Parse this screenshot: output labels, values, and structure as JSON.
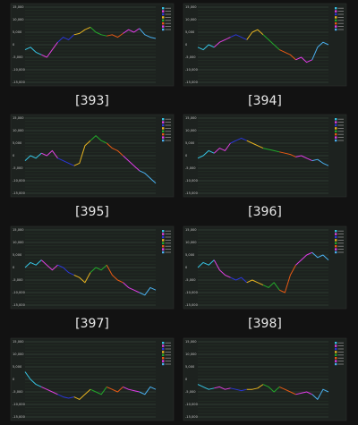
{
  "chart_data": [
    {
      "type": "line",
      "label": "[393]",
      "ylim": [
        -15000,
        15000
      ],
      "yticks": [
        {
          "value": 15000,
          "label": "15,000"
        },
        {
          "value": 10000,
          "label": "10,000"
        },
        {
          "value": 5000,
          "label": "5,000"
        },
        0,
        {
          "value": -5000,
          "label": "-5,000"
        },
        {
          "value": -10000,
          "label": "-10,000"
        },
        {
          "value": -15000,
          "label": "-15,000"
        }
      ],
      "segment_colors": [
        "#36c4e4",
        "#e040e0",
        "#2a36d8",
        "#e8b420",
        "#22a82a",
        "#e85a14",
        "#e03ce8",
        "#4ab0f0"
      ],
      "values": [
        -2000,
        -1000,
        -3000,
        -4000,
        -5000,
        -2000,
        1000,
        3000,
        2000,
        4000,
        4500,
        6000,
        7000,
        5000,
        4000,
        3500,
        4000,
        3000,
        4500,
        6000,
        5000,
        6500,
        4000,
        3000,
        2500
      ]
    },
    {
      "type": "line",
      "label": "[394]",
      "ylim": [
        -15000,
        15000
      ],
      "yticks": [
        {
          "value": 15000,
          "label": "15,000"
        },
        {
          "value": 10000,
          "label": "10,000"
        },
        {
          "value": 5000,
          "label": "5,000"
        },
        0,
        {
          "value": -5000,
          "label": "-5,000"
        },
        {
          "value": -10000,
          "label": "-10,000"
        },
        {
          "value": -15000,
          "label": "-15,000"
        }
      ],
      "segment_colors": [
        "#36c4e4",
        "#e040e0",
        "#2a36d8",
        "#e8b420",
        "#22a82a",
        "#e85a14",
        "#e03ce8",
        "#4ab0f0"
      ],
      "values": [
        -1000,
        -2000,
        0,
        -1000,
        1000,
        2000,
        3000,
        4000,
        3000,
        2000,
        5000,
        6000,
        4000,
        2000,
        0,
        -2000,
        -3000,
        -4000,
        -6000,
        -5000,
        -7000,
        -6000,
        -1000,
        1000,
        0
      ]
    },
    {
      "type": "line",
      "label": "[395]",
      "ylim": [
        -15000,
        15000
      ],
      "yticks": [
        {
          "value": 15000,
          "label": "15,000"
        },
        {
          "value": 10000,
          "label": "10,000"
        },
        {
          "value": 5000,
          "label": "5,000"
        },
        0,
        {
          "value": -5000,
          "label": "-5,000"
        },
        {
          "value": -10000,
          "label": "-10,000"
        },
        {
          "value": -15000,
          "label": "-15,000"
        }
      ],
      "segment_colors": [
        "#36c4e4",
        "#e040e0",
        "#2a36d8",
        "#e8b420",
        "#22a82a",
        "#e85a14",
        "#e03ce8",
        "#4ab0f0"
      ],
      "values": [
        -2000,
        0,
        -1000,
        1000,
        0,
        2000,
        -1000,
        -2000,
        -3000,
        -4000,
        -3000,
        4000,
        6000,
        8000,
        6000,
        5000,
        3000,
        2000,
        0,
        -2000,
        -4000,
        -6000,
        -7000,
        -9000,
        -11000
      ]
    },
    {
      "type": "line",
      "label": "[396]",
      "ylim": [
        -15000,
        15000
      ],
      "yticks": [
        {
          "value": 15000,
          "label": "15,000"
        },
        {
          "value": 10000,
          "label": "10,000"
        },
        {
          "value": 5000,
          "label": "5,000"
        },
        0,
        {
          "value": -5000,
          "label": "-5,000"
        },
        {
          "value": -10000,
          "label": "-10,000"
        },
        {
          "value": -15000,
          "label": "-15,000"
        }
      ],
      "segment_colors": [
        "#36c4e4",
        "#e040e0",
        "#2a36d8",
        "#e8b420",
        "#22a82a",
        "#e85a14",
        "#e03ce8",
        "#4ab0f0"
      ],
      "values": [
        -1000,
        0,
        2000,
        1000,
        3000,
        2000,
        5000,
        6000,
        7000,
        6000,
        5000,
        4000,
        3000,
        2500,
        2000,
        1500,
        1000,
        500,
        -500,
        0,
        -1000,
        -2000,
        -1500,
        -3000,
        -4000
      ]
    },
    {
      "type": "line",
      "label": "[397]",
      "ylim": [
        -15000,
        15000
      ],
      "yticks": [
        {
          "value": 15000,
          "label": "15,000"
        },
        {
          "value": 10000,
          "label": "10,000"
        },
        {
          "value": 5000,
          "label": "5,000"
        },
        0,
        {
          "value": -5000,
          "label": "-5,000"
        },
        {
          "value": -10000,
          "label": "-10,000"
        },
        {
          "value": -15000,
          "label": "-15,000"
        }
      ],
      "segment_colors": [
        "#36c4e4",
        "#e040e0",
        "#2a36d8",
        "#e8b420",
        "#22a82a",
        "#e85a14",
        "#e03ce8",
        "#4ab0f0"
      ],
      "values": [
        0,
        2000,
        1000,
        3000,
        1000,
        -1000,
        1000,
        0,
        -2000,
        -3000,
        -4000,
        -6000,
        -2000,
        0,
        -1000,
        1000,
        -3000,
        -5000,
        -6000,
        -8000,
        -9000,
        -10000,
        -11000,
        -8000,
        -9000
      ]
    },
    {
      "type": "line",
      "label": "[398]",
      "ylim": [
        -15000,
        15000
      ],
      "yticks": [
        {
          "value": 15000,
          "label": "15,000"
        },
        {
          "value": 10000,
          "label": "10,000"
        },
        {
          "value": 5000,
          "label": "5,000"
        },
        0,
        {
          "value": -5000,
          "label": "-5,000"
        },
        {
          "value": -10000,
          "label": "-10,000"
        },
        {
          "value": -15000,
          "label": "-15,000"
        }
      ],
      "segment_colors": [
        "#36c4e4",
        "#e040e0",
        "#2a36d8",
        "#e8b420",
        "#22a82a",
        "#e85a14",
        "#e03ce8",
        "#4ab0f0"
      ],
      "values": [
        0,
        2000,
        1000,
        3000,
        -1000,
        -3000,
        -4000,
        -5000,
        -4000,
        -6000,
        -5000,
        -6000,
        -7000,
        -8000,
        -6000,
        -9000,
        -10000,
        -3000,
        1000,
        3000,
        5000,
        6000,
        4000,
        5000,
        3000
      ]
    },
    {
      "type": "line",
      "ylim": [
        -15000,
        15000
      ],
      "yticks": [
        {
          "value": 15000,
          "label": "15,000"
        },
        {
          "value": 10000,
          "label": "10,000"
        },
        {
          "value": 5000,
          "label": "5,000"
        },
        0,
        {
          "value": -5000,
          "label": "-5,000"
        },
        {
          "value": -10000,
          "label": "-10,000"
        },
        {
          "value": -15000,
          "label": "-15,000"
        }
      ],
      "segment_colors": [
        "#36c4e4",
        "#e040e0",
        "#2a36d8",
        "#e8b420",
        "#22a82a",
        "#e85a14",
        "#e03ce8",
        "#4ab0f0"
      ],
      "values": [
        3000,
        0,
        -2000,
        -3000,
        -4000,
        -5000,
        -6000,
        -7000,
        -7500,
        -7000,
        -8000,
        -6000,
        -4000,
        -5000,
        -6000,
        -3000,
        -4000,
        -5000,
        -3000,
        -4000,
        -4500,
        -5000,
        -6000,
        -3000,
        -4000
      ]
    },
    {
      "type": "line",
      "ylim": [
        -15000,
        15000
      ],
      "yticks": [
        {
          "value": 15000,
          "label": "15,000"
        },
        {
          "value": 10000,
          "label": "10,000"
        },
        {
          "value": 5000,
          "label": "5,000"
        },
        0,
        {
          "value": -5000,
          "label": "-5,000"
        },
        {
          "value": -10000,
          "label": "-10,000"
        },
        {
          "value": -15000,
          "label": "-15,000"
        }
      ],
      "segment_colors": [
        "#36c4e4",
        "#e040e0",
        "#2a36d8",
        "#e8b420",
        "#22a82a",
        "#e85a14",
        "#e03ce8",
        "#4ab0f0"
      ],
      "values": [
        -2000,
        -3000,
        -4000,
        -3500,
        -3000,
        -4000,
        -3500,
        -4000,
        -4500,
        -4000,
        -4000,
        -3500,
        -2000,
        -3000,
        -5000,
        -3000,
        -4000,
        -5000,
        -6000,
        -5500,
        -5000,
        -6000,
        -8000,
        -4000,
        -5000
      ]
    }
  ]
}
